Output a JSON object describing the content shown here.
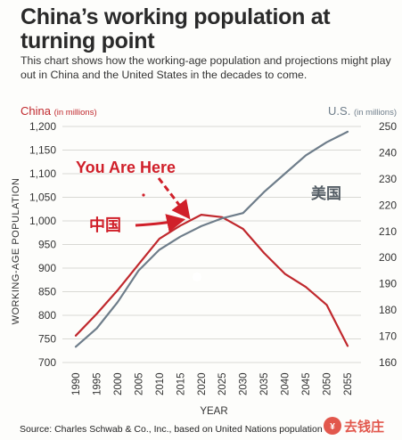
{
  "header": {
    "title": "China’s working population at turning point",
    "subtitle": "This chart shows how the working-age population and projections might play out in China and the United States in the decades to come."
  },
  "axes": {
    "left_title": "China",
    "left_unit": "(in millions)",
    "right_title": "U.S.",
    "right_unit": "(in millions)",
    "y_label": "WORKING-AGE POPULATION",
    "x_label": "YEAR"
  },
  "annotations": {
    "you_are_here": "You Are Here",
    "china_label": "中国",
    "us_label": "美国"
  },
  "footer": {
    "source": "Source: Charles Schwab & Co., Inc., based on United Nations population"
  },
  "watermark": {
    "text": "去钱庄"
  },
  "colors": {
    "china": "#c0282d",
    "us": "#6e7d8a",
    "annotation": "#d0202a",
    "grid": "#d9d9d4"
  },
  "chart_data": {
    "type": "line",
    "x": [
      1990,
      1995,
      2000,
      2005,
      2010,
      2015,
      2020,
      2025,
      2030,
      2035,
      2040,
      2045,
      2050,
      2055
    ],
    "x_ticks": [
      "1990",
      "1995",
      "2000",
      "2005",
      "2010",
      "2015",
      "2020",
      "2025",
      "2030",
      "2035",
      "2040",
      "2045",
      "2050",
      "2055"
    ],
    "y_left": {
      "ticks": [
        "700",
        "750",
        "800",
        "850",
        "900",
        "950",
        "1,000",
        "1,050",
        "1,100",
        "1,150",
        "1,200"
      ],
      "lim": [
        700,
        1200
      ]
    },
    "y_right": {
      "ticks": [
        "160",
        "170",
        "180",
        "190",
        "200",
        "210",
        "220",
        "230",
        "240",
        "250"
      ],
      "lim": [
        160,
        250
      ]
    },
    "grid": true,
    "series": [
      {
        "key": "china",
        "axis": "left",
        "values": [
          757,
          803,
          853,
          908,
          962,
          990,
          1013,
          1008,
          983,
          932,
          888,
          860,
          822,
          735
        ]
      },
      {
        "key": "us",
        "axis": "right",
        "values": [
          166,
          173,
          183,
          195,
          203,
          208,
          212,
          215,
          217,
          225,
          232,
          239,
          244,
          248
        ]
      }
    ]
  }
}
